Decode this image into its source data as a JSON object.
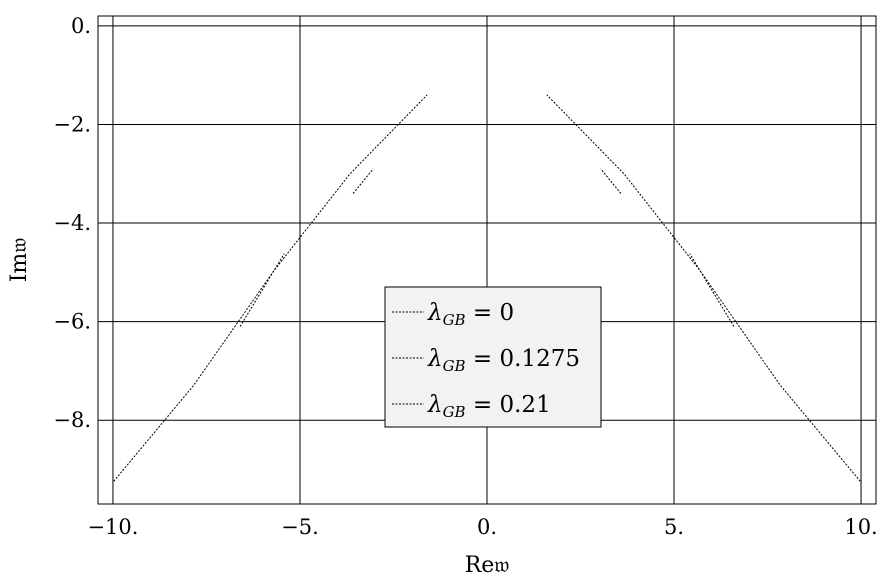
{
  "chart_data": {
    "type": "line",
    "xlabel": "Re𝔴",
    "ylabel": "Im𝔴",
    "xlim": [
      -10.4,
      10.4
    ],
    "ylim": [
      -9.7,
      0.2
    ],
    "grid": true,
    "xticks": [
      -10,
      -5,
      0,
      5,
      10
    ],
    "xtick_labels": [
      "−10.",
      "−5.",
      "0.",
      "5.",
      "10."
    ],
    "yticks": [
      0,
      -2,
      -4,
      -6,
      -8
    ],
    "ytick_labels": [
      "0.",
      "−2.",
      "−4.",
      "−6.",
      "−8."
    ],
    "legend_position": "center",
    "legend": [
      {
        "symbol": "λ",
        "sub": "GB",
        "value": "= 0"
      },
      {
        "symbol": "λ",
        "sub": "GB",
        "value": "= 0.1275"
      },
      {
        "symbol": "λ",
        "sub": "GB",
        "value": "= 0.21"
      }
    ],
    "series": [
      {
        "points": [
          [
            -9.98,
            -9.24
          ],
          [
            -7.85,
            -7.3
          ],
          [
            -5.7,
            -4.97
          ],
          [
            -3.66,
            -3.0
          ],
          [
            -1.6,
            -1.4
          ]
        ]
      },
      {
        "points": [
          [
            -6.6,
            -6.1
          ],
          [
            -5.42,
            -4.62
          ]
        ]
      },
      {
        "points": [
          [
            -3.58,
            -3.4
          ],
          [
            -3.04,
            -2.9
          ]
        ]
      },
      {
        "points": [
          [
            9.98,
            -9.24
          ],
          [
            7.85,
            -7.3
          ],
          [
            5.7,
            -4.97
          ],
          [
            3.66,
            -3.0
          ],
          [
            1.6,
            -1.4
          ]
        ]
      },
      {
        "points": [
          [
            6.6,
            -6.1
          ],
          [
            5.42,
            -4.62
          ]
        ]
      },
      {
        "points": [
          [
            3.58,
            -3.4
          ],
          [
            3.04,
            -2.9
          ]
        ]
      }
    ]
  }
}
